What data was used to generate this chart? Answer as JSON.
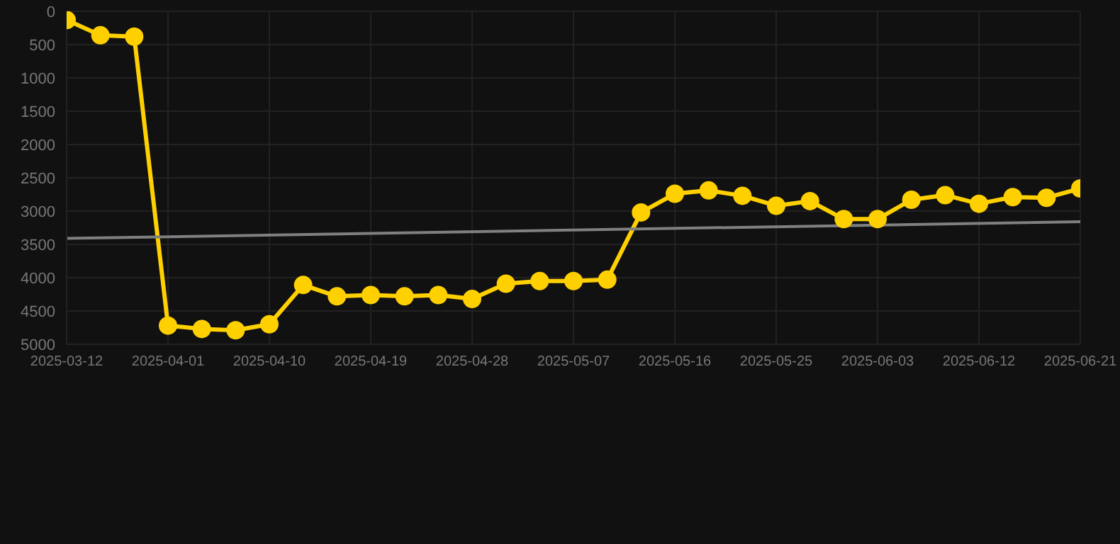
{
  "chart_data": {
    "type": "line",
    "categories": [
      "2025-03-12",
      null,
      null,
      "2025-04-01",
      null,
      null,
      "2025-04-10",
      null,
      null,
      "2025-04-19",
      null,
      null,
      "2025-04-28",
      null,
      null,
      "2025-05-07",
      null,
      null,
      "2025-05-16",
      null,
      null,
      "2025-05-25",
      null,
      null,
      "2025-06-03",
      null,
      null,
      "2025-06-12",
      null,
      null,
      "2025-06-21"
    ],
    "series": [
      {
        "color": "#ffd000",
        "marker": "circle",
        "values": [
          130,
          360,
          380,
          4720,
          4770,
          4790,
          4700,
          4110,
          4280,
          4260,
          4280,
          4260,
          4320,
          4090,
          4050,
          4050,
          4030,
          3020,
          2740,
          2690,
          2770,
          2920,
          2850,
          3120,
          3120,
          2830,
          2760,
          2890,
          2790,
          2800,
          2660
        ]
      },
      {
        "type": "line",
        "color": "#808080",
        "marker": "none",
        "values": [
          3410,
          null,
          null,
          null,
          null,
          null,
          null,
          null,
          null,
          null,
          null,
          null,
          null,
          null,
          null,
          null,
          null,
          null,
          null,
          null,
          null,
          null,
          null,
          null,
          null,
          null,
          null,
          null,
          null,
          null,
          3160
        ]
      }
    ],
    "ylim": [
      5000,
      0
    ],
    "yticks": [
      0,
      500,
      1000,
      1500,
      2000,
      2500,
      3000,
      3500,
      4000,
      4500,
      5000
    ],
    "grid": true
  }
}
